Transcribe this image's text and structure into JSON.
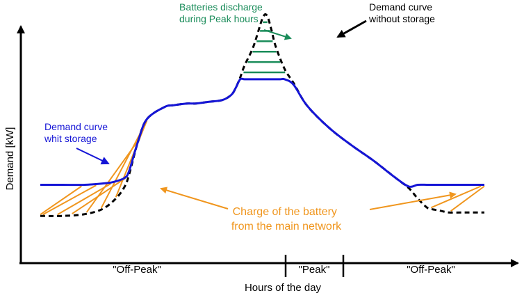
{
  "chart_data": {
    "type": "line",
    "title": "",
    "xlabel": "Hours of the day",
    "ylabel": "Demand [kW]",
    "x_periods": [
      "\"Off-Peak\"",
      "\"Peak\"",
      "\"Off-Peak\""
    ],
    "series": [
      {
        "name": "Demand curve without storage",
        "style": "dashed",
        "color": "#000000",
        "x": [
          0,
          5,
          10,
          14,
          17,
          19,
          20,
          22,
          24,
          28,
          30,
          33,
          35,
          38,
          41,
          43,
          44,
          45,
          46,
          48,
          50,
          51,
          52,
          53,
          55,
          57,
          60,
          65,
          70,
          75,
          80,
          83,
          85,
          87,
          88,
          90,
          92,
          95,
          97,
          100
        ],
        "values": [
          0.12,
          0.12,
          0.13,
          0.16,
          0.22,
          0.29,
          0.36,
          0.55,
          0.68,
          0.75,
          0.76,
          0.77,
          0.77,
          0.78,
          0.79,
          0.82,
          0.86,
          0.92,
          0.99,
          1.1,
          1.26,
          1.28,
          1.2,
          1.1,
          0.97,
          0.89,
          0.76,
          0.63,
          0.53,
          0.44,
          0.34,
          0.28,
          0.22,
          0.17,
          0.16,
          0.15,
          0.14,
          0.14,
          0.14,
          0.14
        ]
      },
      {
        "name": "Demand curve whit storage",
        "style": "solid",
        "color": "#1515d6",
        "x": [
          0,
          5,
          10,
          15,
          17,
          19,
          20,
          22,
          24,
          28,
          30,
          33,
          35,
          38,
          41,
          43,
          44,
          45,
          46,
          48,
          50,
          52,
          54,
          55,
          57,
          60,
          65,
          70,
          75,
          80,
          83,
          85,
          87,
          88,
          90,
          95,
          100
        ],
        "values": [
          0.3,
          0.3,
          0.3,
          0.31,
          0.32,
          0.34,
          0.38,
          0.55,
          0.68,
          0.75,
          0.76,
          0.77,
          0.77,
          0.78,
          0.79,
          0.82,
          0.86,
          0.91,
          0.91,
          0.91,
          0.91,
          0.91,
          0.91,
          0.91,
          0.88,
          0.76,
          0.63,
          0.53,
          0.44,
          0.34,
          0.29,
          0.3,
          0.3,
          0.3,
          0.3,
          0.3,
          0.3
        ]
      }
    ],
    "annotations": {
      "discharge_lines": [
        "Batteries discharge",
        "during Peak hours"
      ],
      "without_storage_lines": [
        "Demand curve",
        "without storage"
      ],
      "with_storage_lines": [
        "Demand curve",
        "whit storage"
      ],
      "charge_lines": [
        "Charge of the battery",
        "from the main network"
      ]
    },
    "colors": {
      "axis": "#000000",
      "with_storage": "#1515d6",
      "without_storage": "#000000",
      "discharge": "#1a8c5a",
      "charge": "#f0961e"
    },
    "grid": false
  }
}
